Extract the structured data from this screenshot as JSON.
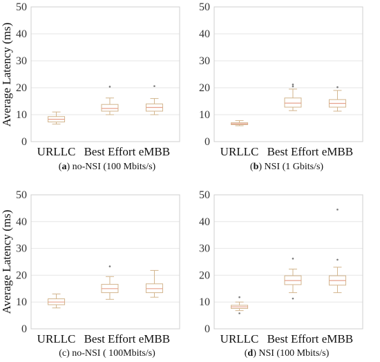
{
  "chart_data": [
    {
      "type": "box",
      "caption_letter": "a",
      "caption_text": " no-NSI (100 Mbits/s)",
      "ylabel": "Average Latency (ms)",
      "ylim": [
        0,
        50
      ],
      "yticks": [
        0,
        10,
        20,
        30,
        40,
        50
      ],
      "grid": true,
      "categories": [
        "URLLC",
        "Best Effort",
        "eMBB"
      ],
      "boxes": [
        {
          "whislo": 6.5,
          "q1": 7.3,
          "med": 8.3,
          "q3": 9.3,
          "whishi": 11.0,
          "fliers": []
        },
        {
          "whislo": 10.0,
          "q1": 11.3,
          "med": 12.3,
          "q3": 13.8,
          "whishi": 16.2,
          "fliers": [
            20.4
          ]
        },
        {
          "whislo": 10.0,
          "q1": 11.3,
          "med": 12.7,
          "q3": 14.0,
          "whishi": 16.0,
          "fliers": [
            20.6
          ]
        }
      ]
    },
    {
      "type": "box",
      "caption_letter": "b",
      "caption_text": " NSI (1 Gbits/s)",
      "ylabel": "",
      "ylim": [
        0,
        50
      ],
      "yticks": [
        0,
        10,
        20,
        30,
        40,
        50
      ],
      "grid": true,
      "categories": [
        "URLLC",
        "Best Effort",
        "eMBB"
      ],
      "boxes": [
        {
          "whislo": 5.9,
          "q1": 6.3,
          "med": 6.6,
          "q3": 7.0,
          "whishi": 7.8,
          "fliers": []
        },
        {
          "whislo": 11.5,
          "q1": 12.8,
          "med": 14.3,
          "q3": 16.2,
          "whishi": 19.5,
          "fliers": [
            20.5,
            21.2
          ]
        },
        {
          "whislo": 11.3,
          "q1": 12.8,
          "med": 14.2,
          "q3": 15.6,
          "whishi": 19.0,
          "fliers": [
            20.2
          ]
        }
      ]
    },
    {
      "type": "box",
      "caption_letter": "",
      "caption_text": "(c) no-NSI ( 100Mbits/s)",
      "ylabel": "Average Latency (ms)",
      "ylim": [
        0,
        50
      ],
      "yticks": [
        0,
        10,
        20,
        30,
        40,
        50
      ],
      "grid": true,
      "categories": [
        "URLLC",
        "Best Effort",
        "eMBB"
      ],
      "boxes": [
        {
          "whislo": 7.8,
          "q1": 9.0,
          "med": 10.0,
          "q3": 11.2,
          "whishi": 13.0,
          "fliers": []
        },
        {
          "whislo": 11.0,
          "q1": 13.5,
          "med": 15.0,
          "q3": 16.6,
          "whishi": 19.5,
          "fliers": [
            23.3
          ]
        },
        {
          "whislo": 11.8,
          "q1": 13.5,
          "med": 15.0,
          "q3": 16.8,
          "whishi": 21.8,
          "fliers": []
        }
      ]
    },
    {
      "type": "box",
      "caption_letter": "d",
      "caption_text": " NSI (100 Mbits/s)",
      "ylabel": "",
      "ylim": [
        0,
        50
      ],
      "yticks": [
        0,
        10,
        20,
        30,
        40,
        50
      ],
      "grid": true,
      "categories": [
        "URLLC",
        "Best Effort",
        "eMBB"
      ],
      "boxes": [
        {
          "whislo": 6.8,
          "q1": 7.6,
          "med": 8.2,
          "q3": 8.8,
          "whishi": 10.0,
          "fliers": [
            5.8,
            11.8
          ]
        },
        {
          "whislo": 13.5,
          "q1": 16.5,
          "med": 18.0,
          "q3": 19.8,
          "whishi": 22.3,
          "fliers": [
            11.3,
            26.2
          ]
        },
        {
          "whislo": 13.5,
          "q1": 16.3,
          "med": 18.0,
          "q3": 19.8,
          "whishi": 23.0,
          "fliers": [
            25.8,
            44.5
          ]
        }
      ]
    }
  ],
  "colors": {
    "box": "#d2b48c",
    "median": "#e6a08c",
    "flier": "#7a7a7a",
    "grid": "#e6e6e6",
    "frame": "#cfcfcf"
  }
}
